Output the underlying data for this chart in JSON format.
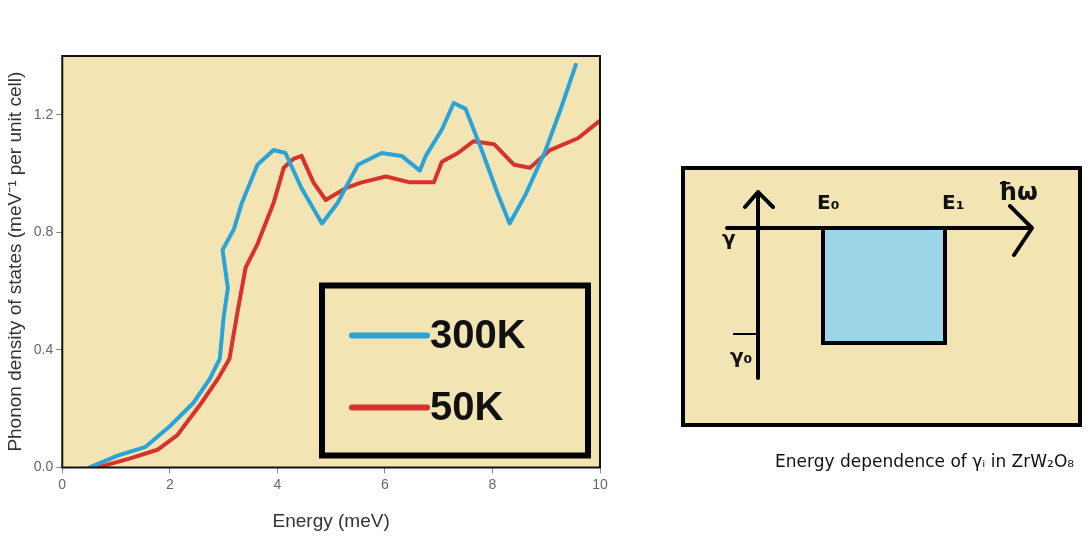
{
  "chart_data": [
    {
      "type": "line",
      "xlabel": "Energy (meV)",
      "ylabel": "Phonon density of states (meV⁻¹ per unit cell)",
      "xlim": [
        0,
        10
      ],
      "ylim": [
        0,
        1.4
      ],
      "xticks": [
        0,
        2,
        4,
        6,
        8,
        10
      ],
      "yticks": [
        {
          "value": 0,
          "label": "0.0"
        },
        {
          "value": 0.4,
          "label": "0.4"
        },
        {
          "value": 0.8,
          "label": "0.8"
        },
        {
          "value": 1.2,
          "label": "1.2"
        }
      ],
      "legend": "bottom right",
      "grid": false,
      "line_style": "solid",
      "marker": "none",
      "series": [
        {
          "name": "300K",
          "color": "#29a3d8",
          "x": [
            0.51,
            1.03,
            1.55,
            2.0,
            2.44,
            2.74,
            2.93,
            3.0,
            3.08,
            2.98,
            3.19,
            3.34,
            3.63,
            3.93,
            4.15,
            4.45,
            4.83,
            5.12,
            5.5,
            5.94,
            6.31,
            6.65,
            6.76,
            7.06,
            7.28,
            7.5,
            7.8,
            8.1,
            8.32,
            8.62,
            8.99,
            9.29,
            9.55
          ],
          "values": [
            0,
            0.04,
            0.07,
            0.14,
            0.22,
            0.3,
            0.37,
            0.51,
            0.61,
            0.74,
            0.81,
            0.9,
            1.03,
            1.08,
            1.07,
            0.95,
            0.83,
            0.9,
            1.03,
            1.07,
            1.06,
            1.01,
            1.06,
            1.15,
            1.24,
            1.22,
            1.08,
            0.93,
            0.83,
            0.93,
            1.08,
            1.23,
            1.37
          ]
        },
        {
          "name": "50K",
          "color": "#d9312b",
          "x": [
            0.66,
            1.25,
            1.77,
            2.14,
            2.59,
            2.89,
            3.11,
            3.26,
            3.41,
            3.63,
            3.93,
            4.12,
            4.3,
            4.45,
            4.67,
            4.9,
            5.27,
            5.57,
            6.02,
            6.46,
            6.91,
            7.06,
            7.36,
            7.65,
            8.03,
            8.4,
            8.7,
            9.07,
            9.59,
            10.0
          ],
          "values": [
            0,
            0.03,
            0.06,
            0.11,
            0.22,
            0.3,
            0.37,
            0.53,
            0.68,
            0.76,
            0.9,
            1.02,
            1.05,
            1.06,
            0.97,
            0.91,
            0.95,
            0.97,
            0.99,
            0.97,
            0.97,
            1.04,
            1.07,
            1.11,
            1.1,
            1.03,
            1.02,
            1.08,
            1.12,
            1.18
          ]
        }
      ]
    },
    {
      "type": "other",
      "annotations": [
        "γ",
        "E₀",
        "E₁",
        "ħω",
        "γ₀",
        "Energy dependence of γᵢ in ZrW₂O₈"
      ]
    }
  ]
}
